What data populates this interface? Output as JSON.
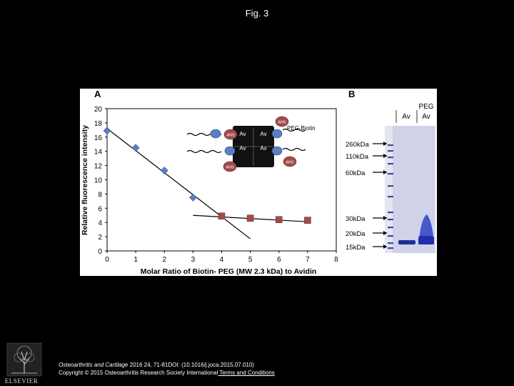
{
  "page_title": "Fig. 3",
  "panel_a_label": "A",
  "panel_b_label": "B",
  "chart_data": {
    "type": "scatter",
    "xlabel": "Molar Ratio of Biotin- PEG (MW 2.3 kDa) to Avidin",
    "ylabel": "Relative fluorescence intensity",
    "xlim": [
      0,
      8
    ],
    "ylim": [
      0,
      20
    ],
    "xticks": [
      0,
      1,
      2,
      3,
      4,
      5,
      6,
      7,
      8
    ],
    "yticks": [
      0,
      2,
      4,
      6,
      8,
      10,
      12,
      14,
      16,
      18,
      20
    ],
    "series": [
      {
        "marker": "diamond",
        "color": "#5b7fc0",
        "x": [
          0,
          1,
          2,
          3
        ],
        "y": [
          16.9,
          14.5,
          11.3,
          7.5
        ]
      },
      {
        "marker": "square",
        "color": "#a24a4a",
        "x": [
          4,
          5,
          6,
          7
        ],
        "y": [
          4.9,
          4.6,
          4.4,
          4.3
        ]
      }
    ],
    "fit_lines": [
      {
        "x": [
          0,
          5
        ],
        "y": [
          17.2,
          1.7
        ]
      },
      {
        "x": [
          3,
          7
        ],
        "y": [
          5.0,
          4.1
        ]
      }
    ]
  },
  "schematic": {
    "peg_label": "PEG-Biotin",
    "ans_label": "ANS",
    "av_label": "Av"
  },
  "gel": {
    "lane_header_peg": "PEG",
    "lane_av": "Av",
    "lane_peg_av": "Av",
    "markers": [
      "260kDa",
      "110kDa",
      "60kDa",
      "30kDa",
      "20kDa",
      "15kDa"
    ]
  },
  "footer": {
    "citation_journal": "Osteoarthritis and Cartilage",
    "citation_rest": " 2016 24, 71-81DOI: (10.1016/j.joca.2015.07.010)",
    "copyright": "Copyright © 2015 Osteoarthritis Research Society International",
    "terms_link": " Terms and Conditions"
  },
  "logo_text": "ELSEVIER"
}
